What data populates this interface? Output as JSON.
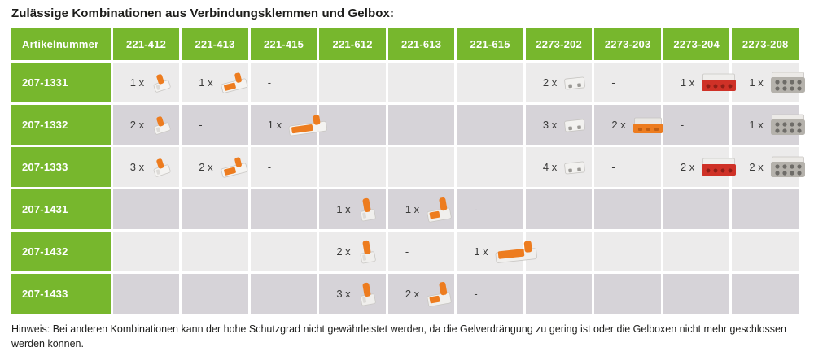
{
  "page": {
    "title": "Zulässige Kombinationen aus Verbindungsklemmen und Gelbox:",
    "note": "Hinweis: Bei anderen Kombinationen kann der hohe Schutzgrad nicht gewährleistet werden, da die Gelverdrängung zu gering ist oder die Gelboxen nicht mehr geschlossen werden können."
  },
  "colors": {
    "header_green": "#77b72d",
    "row_light": "#ecebeb",
    "row_dark": "#d6d3d8",
    "lever_orange": "#ed7c1f",
    "gelbox_red": "#cf3127",
    "gelbox_gray": "#b5b2ac",
    "text_dark": "#3a3a39"
  },
  "table": {
    "header": [
      "Artikelnummer",
      "221-412",
      "221-413",
      "221-415",
      "221-612",
      "221-613",
      "221-615",
      "2273-202",
      "2273-203",
      "2273-204",
      "2273-208"
    ],
    "rows": [
      {
        "article": "207-1331",
        "cells": [
          {
            "qty": "1 x",
            "icon": "clamp-221-412"
          },
          {
            "qty": "1 x",
            "icon": "clamp-221-413"
          },
          {
            "qty": "-"
          },
          {},
          {},
          {},
          {
            "qty": "2 x",
            "icon": "clamp-2273-202"
          },
          {
            "qty": "-"
          },
          {
            "qty": "1 x",
            "icon": "clamp-2273-204"
          },
          {
            "qty": "1 x",
            "icon": "clamp-2273-208"
          }
        ]
      },
      {
        "article": "207-1332",
        "cells": [
          {
            "qty": "2 x",
            "icon": "clamp-221-412"
          },
          {
            "qty": "-"
          },
          {
            "qty": "1 x",
            "icon": "clamp-221-415"
          },
          {},
          {},
          {},
          {
            "qty": "3 x",
            "icon": "clamp-2273-202"
          },
          {
            "qty": "2 x",
            "icon": "clamp-2273-203"
          },
          {
            "qty": "-"
          },
          {
            "qty": "1 x",
            "icon": "clamp-2273-208"
          }
        ]
      },
      {
        "article": "207-1333",
        "cells": [
          {
            "qty": "3 x",
            "icon": "clamp-221-412"
          },
          {
            "qty": "2 x",
            "icon": "clamp-221-413"
          },
          {
            "qty": "-"
          },
          {},
          {},
          {},
          {
            "qty": "4 x",
            "icon": "clamp-2273-202"
          },
          {
            "qty": "-"
          },
          {
            "qty": "2 x",
            "icon": "clamp-2273-204"
          },
          {
            "qty": "2 x",
            "icon": "clamp-2273-208"
          }
        ]
      },
      {
        "article": "207-1431",
        "cells": [
          {},
          {},
          {},
          {
            "qty": "1 x",
            "icon": "clamp-221-612"
          },
          {
            "qty": "1 x",
            "icon": "clamp-221-613"
          },
          {
            "qty": "-"
          },
          {},
          {},
          {},
          {}
        ]
      },
      {
        "article": "207-1432",
        "cells": [
          {},
          {},
          {},
          {
            "qty": "2 x",
            "icon": "clamp-221-612"
          },
          {
            "qty": "-"
          },
          {
            "qty": "1 x",
            "icon": "clamp-221-615"
          },
          {},
          {},
          {},
          {}
        ]
      },
      {
        "article": "207-1433",
        "cells": [
          {},
          {},
          {},
          {
            "qty": "3 x",
            "icon": "clamp-221-612"
          },
          {
            "qty": "2 x",
            "icon": "clamp-221-613"
          },
          {
            "qty": "-"
          },
          {},
          {},
          {},
          {}
        ]
      }
    ]
  }
}
